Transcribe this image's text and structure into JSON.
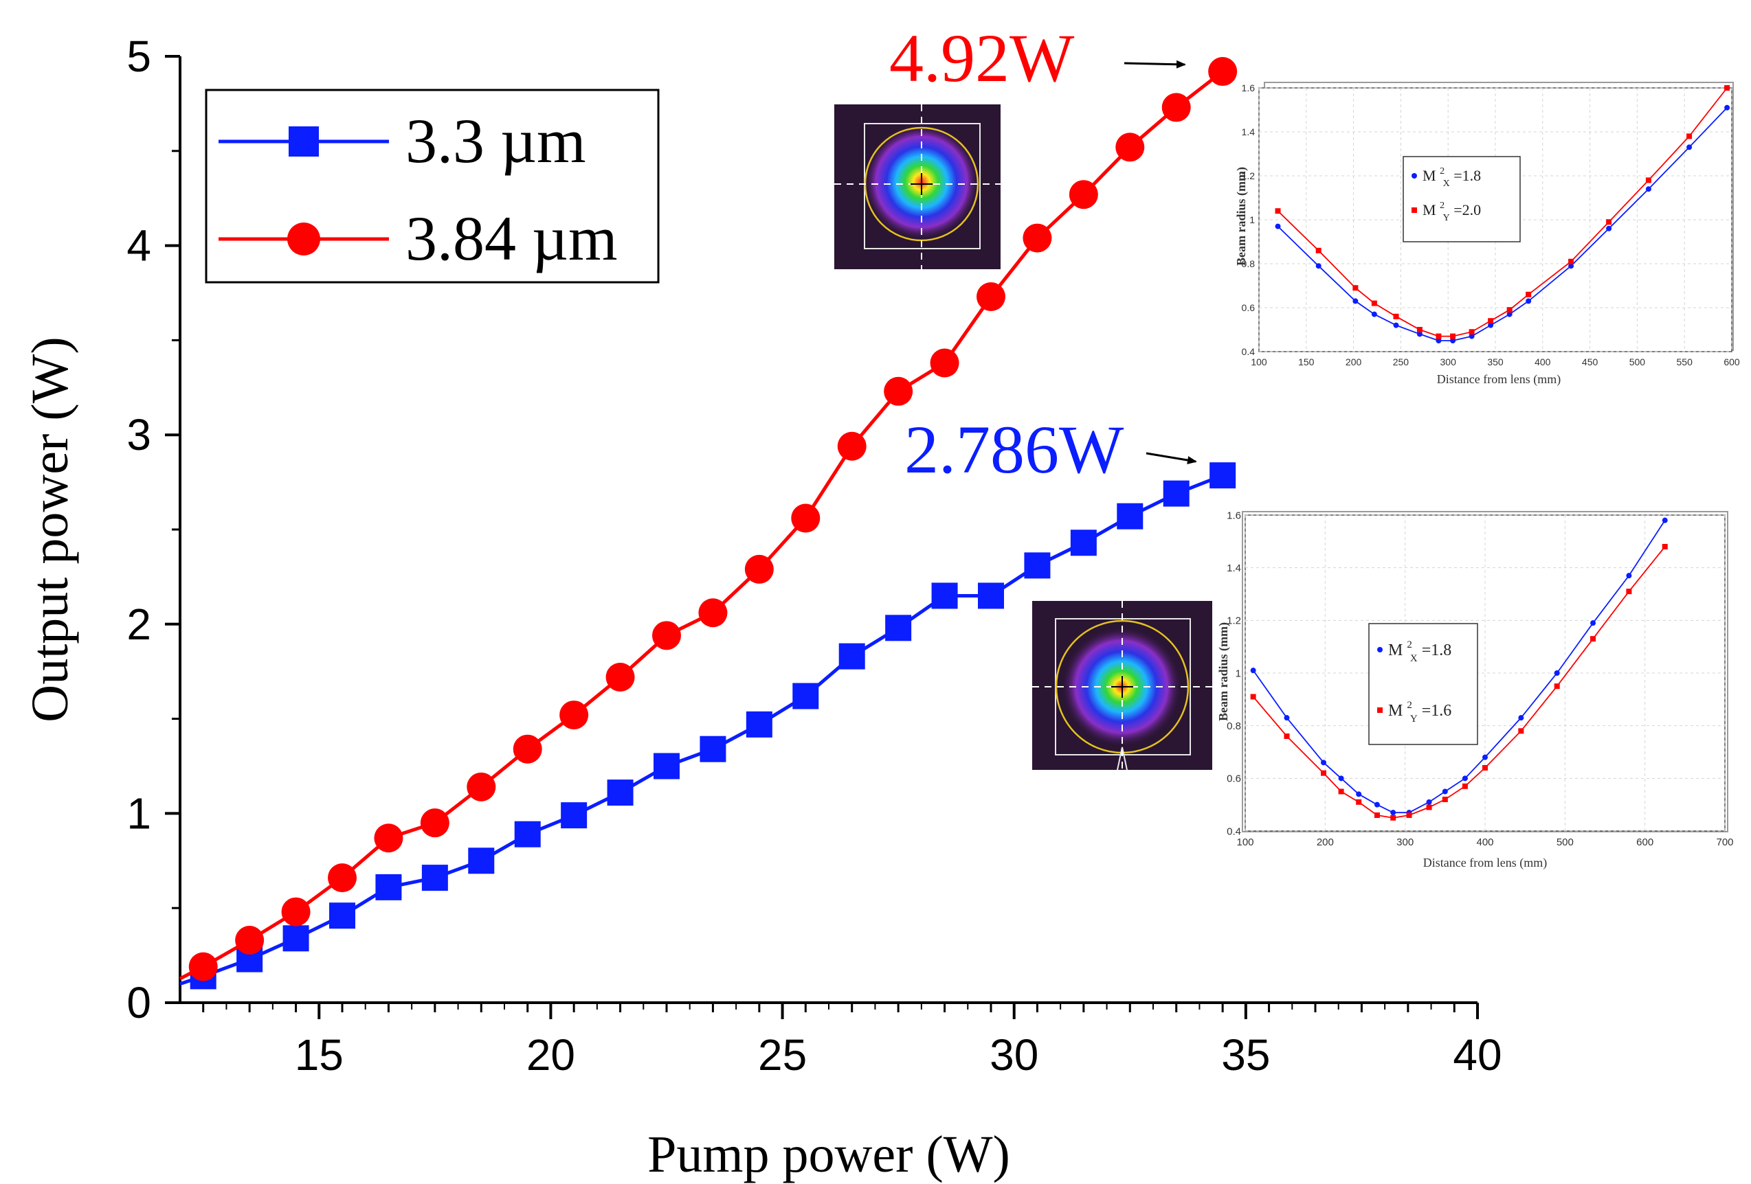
{
  "chart_data": [
    {
      "type": "line",
      "title": "",
      "xlabel": "Pump power (W)",
      "ylabel": "Output power (W)",
      "xlim": [
        12,
        40
      ],
      "ylim": [
        0,
        5
      ],
      "xticks": [
        15,
        20,
        25,
        30,
        35,
        40
      ],
      "yticks": [
        0,
        1,
        2,
        3,
        4,
        5
      ],
      "grid": false,
      "legend": "top-left",
      "series": [
        {
          "name": "3.3 µm",
          "color": "#0a1eff",
          "marker": "square",
          "x": [
            12.5,
            13.5,
            14.5,
            15.5,
            16.5,
            17.5,
            18.5,
            19.5,
            20.5,
            21.5,
            22.5,
            23.5,
            24.5,
            25.5,
            26.5,
            27.5,
            28.5,
            29.5,
            30.5,
            31.5,
            32.5,
            33.5,
            34.5
          ],
          "y": [
            0.14,
            0.23,
            0.34,
            0.46,
            0.61,
            0.66,
            0.75,
            0.89,
            0.99,
            1.11,
            1.25,
            1.34,
            1.47,
            1.62,
            1.83,
            1.98,
            2.15,
            2.15,
            2.31,
            2.43,
            2.57,
            2.69,
            2.786
          ]
        },
        {
          "name": "3.84 µm",
          "color": "#ff0000",
          "marker": "circle",
          "x": [
            12.5,
            13.5,
            14.5,
            15.5,
            16.5,
            17.5,
            18.5,
            19.5,
            20.5,
            21.5,
            22.5,
            23.5,
            24.5,
            25.5,
            26.5,
            27.5,
            28.5,
            29.5,
            30.5,
            31.5,
            32.5,
            33.5,
            34.5
          ],
          "y": [
            0.19,
            0.33,
            0.48,
            0.66,
            0.87,
            0.95,
            1.14,
            1.34,
            1.52,
            1.72,
            1.94,
            2.06,
            2.29,
            2.56,
            2.94,
            3.23,
            3.38,
            3.73,
            4.04,
            4.27,
            4.52,
            4.73,
            4.92
          ]
        }
      ],
      "annotations": [
        {
          "text": "4.92W",
          "color": "#ff0000"
        },
        {
          "text": "2.786W",
          "color": "#0a1eff"
        }
      ]
    },
    {
      "type": "line",
      "title": "",
      "xlabel": "Distance from lens (mm)",
      "ylabel": "Beam radius (mm)",
      "xlim": [
        100,
        600
      ],
      "ylim": [
        0.4,
        1.6
      ],
      "xticks": [
        100,
        150,
        200,
        250,
        300,
        350,
        400,
        450,
        500,
        550,
        600
      ],
      "yticks": [
        0.4,
        0.6,
        0.8,
        1,
        1.2,
        1.4,
        1.6
      ],
      "grid": true,
      "legend": "upper-middle",
      "series": [
        {
          "name": "X",
          "legend_value": "=1.8",
          "color": "#0a1eff",
          "x": [
            120,
            163,
            202,
            222,
            245,
            270,
            290,
            305,
            325,
            345,
            365,
            385,
            430,
            470,
            512,
            555,
            595
          ],
          "y": [
            0.97,
            0.79,
            0.63,
            0.57,
            0.52,
            0.48,
            0.45,
            0.45,
            0.47,
            0.52,
            0.57,
            0.63,
            0.79,
            0.96,
            1.14,
            1.33,
            1.51
          ]
        },
        {
          "name": "Y",
          "legend_value": "=2.0",
          "color": "#ff0000",
          "x": [
            120,
            163,
            202,
            222,
            245,
            270,
            290,
            305,
            325,
            345,
            365,
            385,
            430,
            470,
            512,
            555,
            595
          ],
          "y": [
            1.04,
            0.86,
            0.69,
            0.62,
            0.56,
            0.5,
            0.47,
            0.47,
            0.49,
            0.54,
            0.59,
            0.66,
            0.81,
            0.99,
            1.18,
            1.38,
            1.6
          ]
        }
      ]
    },
    {
      "type": "line",
      "title": "",
      "xlabel": "Distance from lens (mm)",
      "ylabel": "Beam radius (mm)",
      "xlim": [
        100,
        700
      ],
      "ylim": [
        0.4,
        1.6
      ],
      "xticks": [
        100,
        200,
        300,
        400,
        500,
        600,
        700
      ],
      "yticks": [
        0.4,
        0.6,
        0.8,
        1,
        1.2,
        1.4,
        1.6
      ],
      "grid": true,
      "legend": "upper-middle",
      "series": [
        {
          "name": "X",
          "legend_value": "=1.8",
          "color": "#0a1eff",
          "x": [
            110,
            152,
            198,
            220,
            242,
            265,
            285,
            305,
            330,
            350,
            375,
            400,
            445,
            490,
            535,
            580,
            625
          ],
          "y": [
            1.01,
            0.83,
            0.66,
            0.6,
            0.54,
            0.5,
            0.47,
            0.47,
            0.51,
            0.55,
            0.6,
            0.68,
            0.83,
            1.0,
            1.19,
            1.37,
            1.58
          ]
        },
        {
          "name": "Y",
          "legend_value": "=1.6",
          "color": "#ff0000",
          "x": [
            110,
            152,
            198,
            220,
            242,
            265,
            285,
            305,
            330,
            350,
            375,
            400,
            445,
            490,
            535,
            580,
            625
          ],
          "y": [
            0.91,
            0.76,
            0.62,
            0.55,
            0.51,
            0.46,
            0.45,
            0.46,
            0.49,
            0.52,
            0.57,
            0.64,
            0.78,
            0.95,
            1.13,
            1.31,
            1.48
          ]
        }
      ]
    }
  ],
  "colors": {
    "blue": "#0a1eff",
    "red": "#ff0000",
    "beam_background": "#2a1533"
  },
  "labels": {
    "m": "M",
    "sup": "2"
  }
}
